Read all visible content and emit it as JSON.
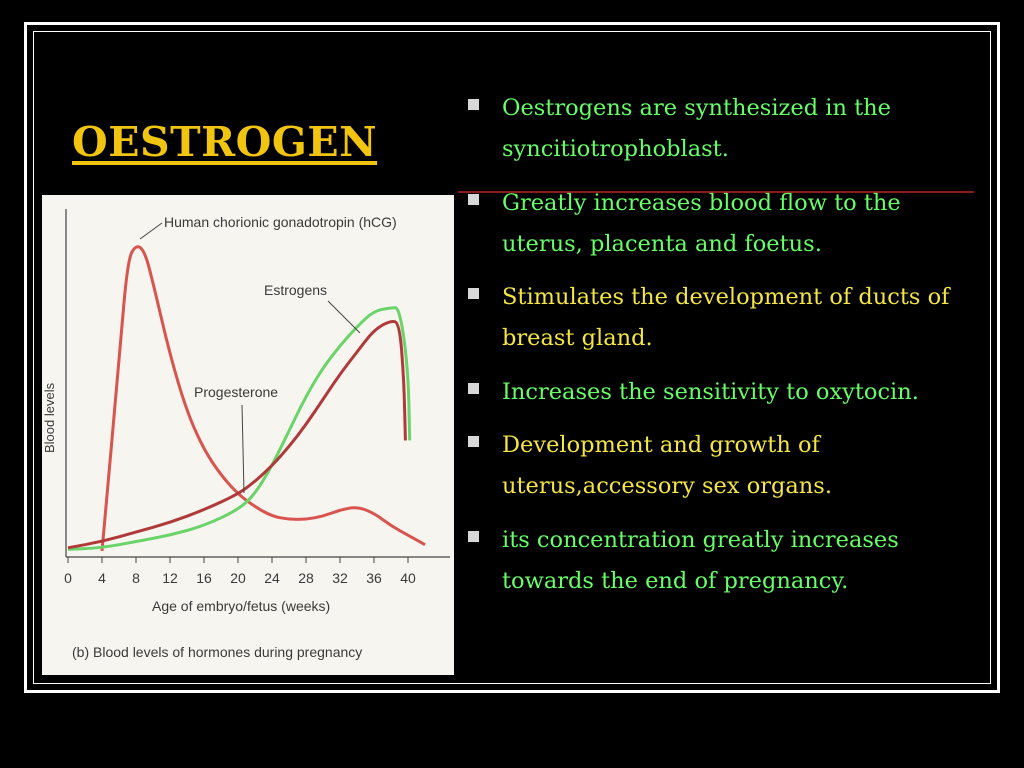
{
  "slide": {
    "title": "OESTROGEN",
    "bullets": [
      {
        "text": "Oestrogens are synthesized in the syncitiotrophoblast.",
        "color": "#66ff66"
      },
      {
        "text": "Greatly increases blood flow to the uterus, placenta and foetus.",
        "color": "#66ff66"
      },
      {
        "text": "Stimulates the development of ducts of breast gland.",
        "color": "#f5e642"
      },
      {
        "text": "Increases the sensitivity to oxytocin.",
        "color": "#66ff66"
      },
      {
        "text": "Development and growth of uterus,accessory sex organs.",
        "color": "#f5e642"
      },
      {
        "text": "its concentration greatly increases towards the end of pregnancy.",
        "color": "#66ff66"
      }
    ]
  },
  "figure": {
    "caption": "(b) Blood levels of hormones during pregnancy",
    "labels": {
      "hcg": "Human chorionic gonadotropin (hCG)",
      "estrogens": "Estrogens",
      "progesterone": "Progesterone"
    },
    "colors": {
      "hcg": "#d9534f",
      "estrogens": "#6ad46a",
      "progesterone": "#b03a3a"
    }
  },
  "chart_data": {
    "type": "line",
    "xlabel": "Age of embryo/fetus (weeks)",
    "ylabel": "Blood levels",
    "xlim": [
      0,
      40
    ],
    "ylim": [
      0,
      100
    ],
    "x_ticks": [
      0,
      4,
      8,
      12,
      16,
      20,
      24,
      28,
      32,
      36,
      40
    ],
    "series": [
      {
        "name": "Human chorionic gonadotropin (hCG)",
        "color": "#d9534f",
        "points": [
          [
            4,
            0
          ],
          [
            6,
            60
          ],
          [
            7,
            92
          ],
          [
            8,
            97
          ],
          [
            9,
            95
          ],
          [
            10,
            85
          ],
          [
            12,
            62
          ],
          [
            14,
            44
          ],
          [
            16,
            32
          ],
          [
            18,
            24
          ],
          [
            20,
            18
          ],
          [
            22,
            14
          ],
          [
            24,
            11
          ],
          [
            26,
            10
          ],
          [
            28,
            10
          ],
          [
            30,
            11
          ],
          [
            32,
            13
          ],
          [
            34,
            14
          ],
          [
            36,
            12
          ],
          [
            38,
            8
          ],
          [
            40,
            5
          ],
          [
            42,
            2
          ]
        ]
      },
      {
        "name": "Estrogens",
        "color": "#6ad46a",
        "points": [
          [
            0,
            0.5
          ],
          [
            4,
            1
          ],
          [
            8,
            3
          ],
          [
            12,
            5
          ],
          [
            16,
            8
          ],
          [
            20,
            13
          ],
          [
            22,
            18
          ],
          [
            24,
            27
          ],
          [
            26,
            38
          ],
          [
            28,
            49
          ],
          [
            30,
            58
          ],
          [
            32,
            65
          ],
          [
            34,
            71
          ],
          [
            36,
            76
          ],
          [
            38,
            77
          ],
          [
            39,
            77
          ],
          [
            40,
            58
          ],
          [
            40.2,
            35
          ]
        ]
      },
      {
        "name": "Progesterone",
        "color": "#b03a3a",
        "points": [
          [
            0,
            1
          ],
          [
            4,
            3
          ],
          [
            8,
            6
          ],
          [
            12,
            9
          ],
          [
            16,
            13
          ],
          [
            20,
            18
          ],
          [
            22,
            22
          ],
          [
            24,
            27
          ],
          [
            26,
            33
          ],
          [
            28,
            40
          ],
          [
            30,
            48
          ],
          [
            32,
            56
          ],
          [
            34,
            63
          ],
          [
            36,
            70
          ],
          [
            38,
            73
          ],
          [
            39,
            72
          ],
          [
            39.5,
            55
          ],
          [
            39.7,
            35
          ]
        ]
      }
    ]
  }
}
